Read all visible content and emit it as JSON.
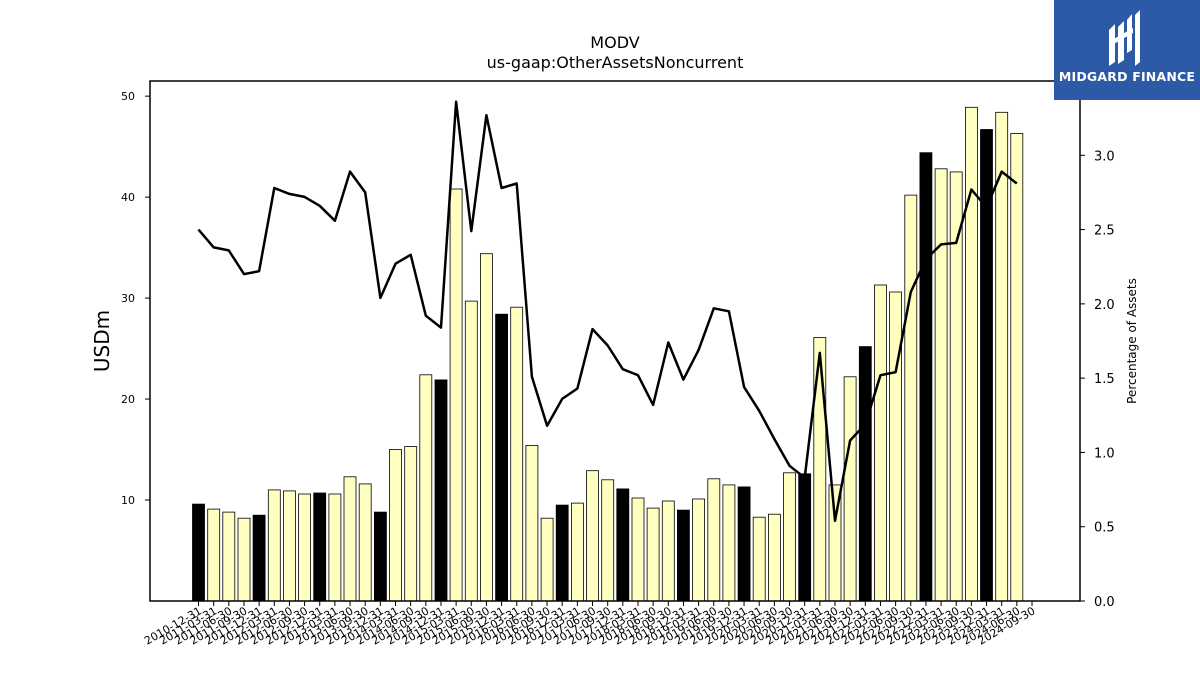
{
  "brand": {
    "name": "MIDGARD FINANCE",
    "color": "#2d5aa6"
  },
  "chart_data": {
    "type": "bar",
    "title": "MODV",
    "subtitle": "us-gaap:OtherAssetsNoncurrent",
    "ylabel": "USDm",
    "y2label": "Percentage of Assets",
    "ylim": [
      0,
      51.5
    ],
    "y2lim": [
      0,
      3.5
    ],
    "yticks": [
      10,
      20,
      30,
      40,
      50
    ],
    "y2ticks": [
      "0.0",
      "0.5",
      "1.0",
      "1.5",
      "2.0",
      "2.5",
      "3.0"
    ],
    "categories": [
      "2010-12-31",
      "2011-03-31",
      "2011-06-30",
      "2011-09-30",
      "2011-12-31",
      "2012-03-31",
      "2012-06-30",
      "2012-09-30",
      "2012-12-31",
      "2013-03-31",
      "2013-06-30",
      "2013-09-30",
      "2013-12-31",
      "2014-03-31",
      "2014-06-30",
      "2014-09-30",
      "2014-12-31",
      "2015-03-31",
      "2015-06-30",
      "2015-09-30",
      "2015-12-31",
      "2016-03-31",
      "2016-06-30",
      "2016-09-30",
      "2016-12-31",
      "2017-03-31",
      "2017-06-30",
      "2017-09-30",
      "2017-12-31",
      "2018-03-31",
      "2018-06-30",
      "2018-09-30",
      "2018-12-31",
      "2019-03-31",
      "2019-06-30",
      "2019-09-30",
      "2019-12-31",
      "2020-03-31",
      "2020-06-30",
      "2020-09-30",
      "2020-12-31",
      "2021-03-31",
      "2021-06-30",
      "2021-09-30",
      "2021-12-31",
      "2022-03-31",
      "2022-06-30",
      "2022-09-30",
      "2022-12-31",
      "2023-03-31",
      "2023-06-30",
      "2023-09-30",
      "2023-12-31",
      "2024-03-31",
      "2024-06-30",
      "2024-09-30"
    ],
    "series": [
      {
        "kind": "bar",
        "values": [
          9.6,
          9.1,
          8.8,
          8.2,
          8.5,
          11.0,
          10.9,
          10.6,
          10.7,
          10.6,
          12.3,
          11.6,
          8.8,
          15.0,
          15.3,
          22.4,
          21.9,
          40.8,
          29.7,
          34.4,
          28.4,
          29.1,
          15.4,
          8.2,
          9.5,
          9.7,
          12.9,
          12.0,
          11.1,
          10.2,
          9.2,
          9.9,
          9.0,
          10.1,
          12.1,
          11.5,
          11.3,
          8.3,
          8.6,
          12.7,
          12.6,
          26.1,
          11.5,
          22.2,
          25.2,
          31.3,
          30.6,
          40.2,
          44.4,
          42.8,
          42.5,
          48.9,
          46.7,
          48.4,
          46.3,
          null
        ],
        "colors": {
          "annual": "#000000",
          "quarterly": "#ffffc0"
        }
      },
      {
        "kind": "line",
        "axis": "right",
        "color": "#000000",
        "values": [
          2.5,
          2.38,
          2.36,
          2.2,
          2.22,
          2.78,
          2.74,
          2.72,
          2.66,
          2.56,
          2.89,
          2.75,
          2.04,
          2.27,
          2.33,
          1.92,
          1.84,
          3.36,
          2.49,
          3.27,
          2.78,
          2.81,
          1.51,
          1.18,
          1.36,
          1.43,
          1.83,
          1.72,
          1.56,
          1.52,
          1.32,
          1.74,
          1.49,
          1.69,
          1.97,
          1.95,
          1.44,
          1.28,
          1.09,
          0.91,
          0.83,
          1.67,
          0.54,
          1.08,
          1.19,
          1.52,
          1.54,
          2.08,
          2.3,
          2.4,
          2.41,
          2.77,
          2.65,
          2.89,
          2.81,
          null
        ]
      }
    ],
    "grid": false,
    "legend": "none"
  }
}
